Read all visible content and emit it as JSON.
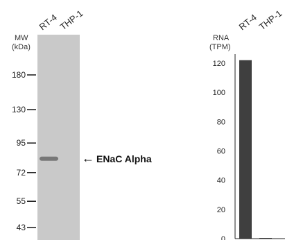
{
  "chart_data": [
    {
      "type": "western-blot",
      "lanes": [
        "RT-4",
        "THP-1"
      ],
      "mw_label": "MW",
      "mw_unit": "(kDa)",
      "markers": [
        {
          "label": "180",
          "kda": 180
        },
        {
          "label": "130",
          "kda": 130
        },
        {
          "label": "95",
          "kda": 95
        },
        {
          "label": "72",
          "kda": 72
        },
        {
          "label": "55",
          "kda": 55
        },
        {
          "label": "43",
          "kda": 43
        }
      ],
      "bands": [
        {
          "lane": "RT-4",
          "kda": 82,
          "intensity": 0.55
        },
        {
          "lane": "THP-1",
          "kda": 82,
          "intensity": 0.0
        }
      ],
      "annotation": {
        "text": "ENaC Alpha",
        "arrow": "←",
        "kda": 82
      },
      "colors": {
        "membrane": "#c9c9c9",
        "band": "#6e6e6e"
      }
    },
    {
      "type": "bar",
      "categories": [
        "RT-4",
        "THP-1"
      ],
      "values": [
        122,
        0.4
      ],
      "ylabel_line1": "RNA",
      "ylabel_line2": "(TPM)",
      "ylim": [
        0,
        130
      ],
      "yticks": [
        0,
        20,
        40,
        60,
        80,
        100,
        120
      ],
      "grid": false,
      "colors": {
        "bar": "#3f3f3f"
      }
    }
  ]
}
